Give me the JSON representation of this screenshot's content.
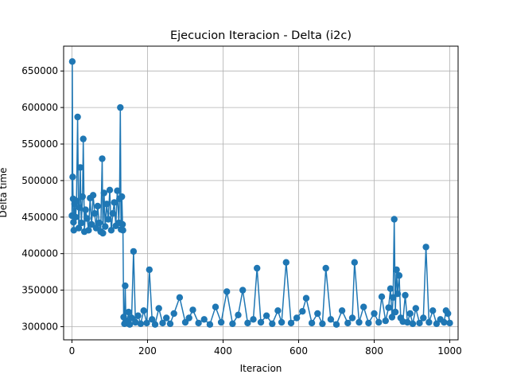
{
  "chart_data": {
    "type": "line",
    "title": "Ejecucion Iteracion - Delta  (i2c)",
    "xlabel": "Iteracion",
    "ylabel": "Delta time",
    "xlim": [
      -22,
      1022
    ],
    "ylim": [
      282000,
      684000
    ],
    "xticks": [
      0,
      200,
      400,
      600,
      800,
      1000
    ],
    "xtick_labels": [
      "0",
      "200",
      "400",
      "600",
      "800",
      "1000"
    ],
    "yticks": [
      300000,
      350000,
      400000,
      450000,
      500000,
      550000,
      600000,
      650000
    ],
    "ytick_labels": [
      "300000",
      "350000",
      "400000",
      "450000",
      "500000",
      "550000",
      "600000",
      "650000"
    ],
    "grid": true,
    "marker": "circle",
    "color": "#1f77b4",
    "series": [
      {
        "x": [
          0,
          1,
          2,
          3,
          4,
          5,
          7,
          10,
          12,
          15,
          18,
          20,
          22,
          25,
          28,
          30,
          33,
          36,
          40,
          44,
          48,
          52,
          56,
          60,
          64,
          68,
          72,
          76,
          80,
          82,
          85,
          88,
          92,
          96,
          100,
          104,
          108,
          112,
          116,
          120,
          124,
          126,
          128,
          130,
          132,
          134,
          135,
          137,
          139,
          141,
          143,
          146,
          150,
          153,
          158,
          163,
          168,
          175,
          182,
          190,
          198,
          205,
          212,
          220,
          230,
          240,
          250,
          260,
          270,
          285,
          300,
          310,
          320,
          335,
          350,
          365,
          380,
          395,
          410,
          425,
          440,
          452,
          465,
          480,
          490,
          500,
          515,
          530,
          545,
          555,
          567,
          580,
          595,
          610,
          620,
          635,
          650,
          663,
          672,
          685,
          700,
          715,
          730,
          742,
          748,
          760,
          772,
          785,
          800,
          812,
          820,
          830,
          838,
          843,
          847,
          850,
          853,
          856,
          859,
          862,
          866,
          870,
          876,
          882,
          888,
          895,
          902,
          910,
          920,
          930,
          937,
          945,
          955,
          965,
          975,
          985,
          990,
          995,
          1000
        ],
        "y": [
          452000,
          663000,
          505000,
          475000,
          443000,
          432000,
          468000,
          450000,
          472000,
          587000,
          435000,
          463000,
          518000,
          442000,
          478000,
          557000,
          430000,
          460000,
          448000,
          432000,
          476000,
          440000,
          480000,
          455000,
          435000,
          465000,
          442000,
          430000,
          530000,
          428000,
          483000,
          437000,
          468000,
          447000,
          487000,
          432000,
          455000,
          470000,
          438000,
          486000,
          442000,
          475000,
          600000,
          433000,
          478000,
          440000,
          432000,
          313000,
          304000,
          356000,
          308000,
          305000,
          320000,
          303000,
          312000,
          403000,
          306000,
          315000,
          304000,
          322000,
          305000,
          378000,
          310000,
          303000,
          325000,
          305000,
          312000,
          304000,
          318000,
          340000,
          306000,
          312000,
          323000,
          305000,
          310000,
          303000,
          327000,
          306000,
          348000,
          304000,
          316000,
          350000,
          305000,
          310000,
          380000,
          306000,
          315000,
          304000,
          322000,
          306000,
          388000,
          305000,
          312000,
          321000,
          339000,
          305000,
          318000,
          304000,
          380000,
          310000,
          303000,
          322000,
          305000,
          312000,
          388000,
          306000,
          327000,
          305000,
          318000,
          306000,
          341000,
          308000,
          326000,
          352000,
          313000,
          340000,
          447000,
          320000,
          378000,
          345000,
          370000,
          312000,
          307000,
          343000,
          306000,
          318000,
          304000,
          325000,
          305000,
          312000,
          409000,
          306000,
          322000,
          304000,
          310000,
          306000,
          322000,
          318000,
          305000
        ]
      }
    ]
  }
}
